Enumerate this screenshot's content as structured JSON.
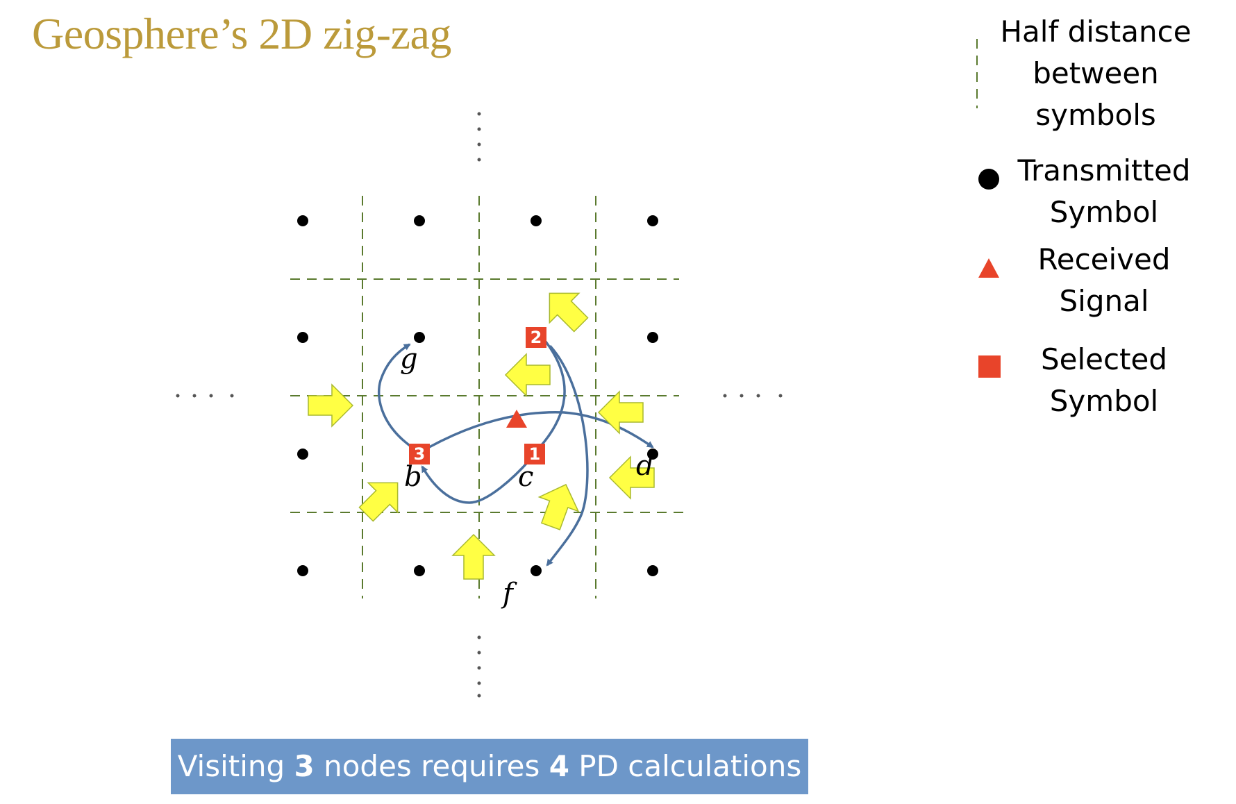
{
  "title": "Geosphere’s 2D zig-zag",
  "legend": {
    "half_distance": [
      "Half distance",
      "between",
      "symbols"
    ],
    "transmitted": [
      "Transmitted",
      "Symbol"
    ],
    "received": [
      "Received",
      "Signal"
    ],
    "selected": [
      "Selected",
      "Symbol"
    ]
  },
  "point_labels": {
    "g": "g",
    "b": "b",
    "c": "c",
    "d": "d",
    "f": "f"
  },
  "selected_numbers": [
    "1",
    "2",
    "3"
  ],
  "banner": {
    "pre": "Visiting ",
    "nodes": "3",
    "mid": " nodes requires ",
    "calcs": "4",
    "post": " PD calculations"
  },
  "colors": {
    "title": "#bb9a3a",
    "grid_dash": "#5a7a2e",
    "selected": "#e8442a",
    "path": "#4a6f9c",
    "arrow_fill": "#ffff44",
    "arrow_stroke": "#a9b92e",
    "banner": "#6d97c9"
  }
}
